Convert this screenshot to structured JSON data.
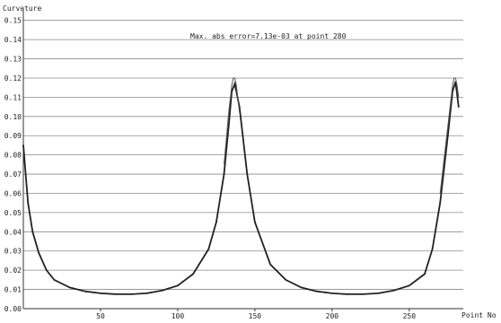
{
  "chart_data": {
    "type": "line",
    "title": "",
    "annotation": "Max. abs error=7.13e-03 at point 280",
    "xlabel": "Point No",
    "ylabel": "Curvature",
    "xlim": [
      0,
      285
    ],
    "ylim": [
      0,
      0.155
    ],
    "x_ticks": [
      "50",
      "100",
      "150",
      "200",
      "250"
    ],
    "y_ticks": [
      "0.00",
      "0.01",
      "0.02",
      "0.03",
      "0.04",
      "0.05",
      "0.06",
      "0.07",
      "0.08",
      "0.09",
      "0.10",
      "0.11",
      "0.12",
      "0.13",
      "0.14",
      "0.15"
    ],
    "y_tick_values": [
      0,
      0.01,
      0.02,
      0.03,
      0.04,
      0.05,
      0.06,
      0.07,
      0.08,
      0.09,
      0.1,
      0.11,
      0.12,
      0.13,
      0.14,
      0.15
    ],
    "x_tick_values": [
      50,
      100,
      150,
      200,
      250
    ],
    "grid": "horizontal",
    "colors": {
      "line": "#222222",
      "grid": "#8a8a8a"
    },
    "series": [
      {
        "x": [
          0,
          3,
          6,
          10,
          15,
          20,
          30,
          40,
          50,
          60,
          70,
          80,
          90,
          100,
          110,
          120,
          125,
          130,
          133,
          135,
          137,
          140,
          145,
          150,
          160,
          170,
          180,
          190,
          200,
          210,
          220,
          230,
          240,
          250,
          260,
          265,
          270,
          275,
          278,
          280,
          282
        ],
        "y": [
          0.085,
          0.055,
          0.04,
          0.029,
          0.02,
          0.015,
          0.011,
          0.009,
          0.008,
          0.0075,
          0.0075,
          0.008,
          0.0095,
          0.012,
          0.018,
          0.031,
          0.045,
          0.07,
          0.095,
          0.113,
          0.117,
          0.105,
          0.07,
          0.045,
          0.023,
          0.015,
          0.011,
          0.009,
          0.008,
          0.0075,
          0.0075,
          0.008,
          0.0095,
          0.012,
          0.018,
          0.031,
          0.055,
          0.09,
          0.113,
          0.118,
          0.105
        ]
      },
      {
        "x": [
          130,
          133,
          135,
          136,
          137,
          138,
          140,
          270,
          275,
          278,
          279,
          280,
          281,
          282
        ],
        "y": [
          0.075,
          0.102,
          0.116,
          0.12,
          0.12,
          0.116,
          0.102,
          0.06,
          0.095,
          0.116,
          0.12,
          0.12,
          0.116,
          0.11
        ]
      }
    ]
  }
}
